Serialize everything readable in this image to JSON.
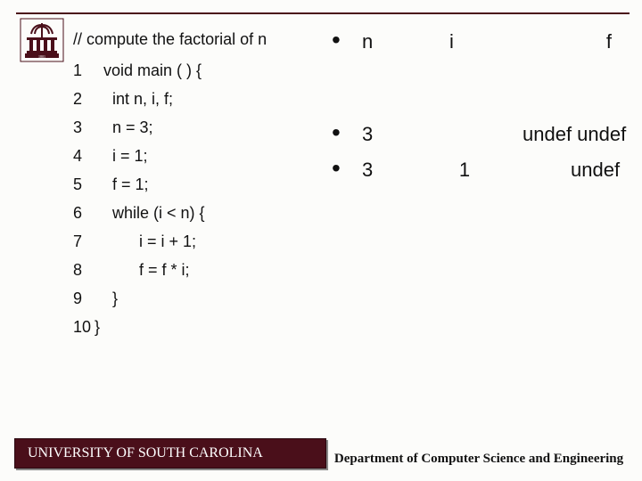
{
  "colors": {
    "accent": "#4a0f1a",
    "background": "#fcfcfa",
    "text": "#111111"
  },
  "code": {
    "title": "// compute the factorial of n",
    "lines": [
      {
        "n": "1",
        "indent": 1,
        "text": "void main ( ) {"
      },
      {
        "n": "2",
        "indent": 2,
        "text": "int n, i, f;"
      },
      {
        "n": "3",
        "indent": 2,
        "text": "n = 3;"
      },
      {
        "n": "4",
        "indent": 2,
        "text": "i = 1;"
      },
      {
        "n": "5",
        "indent": 2,
        "text": "f = 1;"
      },
      {
        "n": "6",
        "indent": 2,
        "text": "while (i < n) {"
      },
      {
        "n": "7",
        "indent": 5,
        "text": "i = i + 1;"
      },
      {
        "n": "8",
        "indent": 5,
        "text": "f = f * i;"
      },
      {
        "n": "9",
        "indent": 2,
        "text": "}"
      },
      {
        "n": "10",
        "indent": 0,
        "text": "}"
      }
    ]
  },
  "trace": {
    "header": {
      "n": "n",
      "i": "i",
      "f": "f"
    },
    "rows": [
      {
        "n": "3",
        "i": "",
        "f": "undef   undef"
      },
      {
        "n": "3",
        "i": "1",
        "f": "undef"
      }
    ]
  },
  "footer": {
    "left": "UNIVERSITY OF SOUTH CAROLINA",
    "right": "Department of Computer Science and Engineering"
  }
}
